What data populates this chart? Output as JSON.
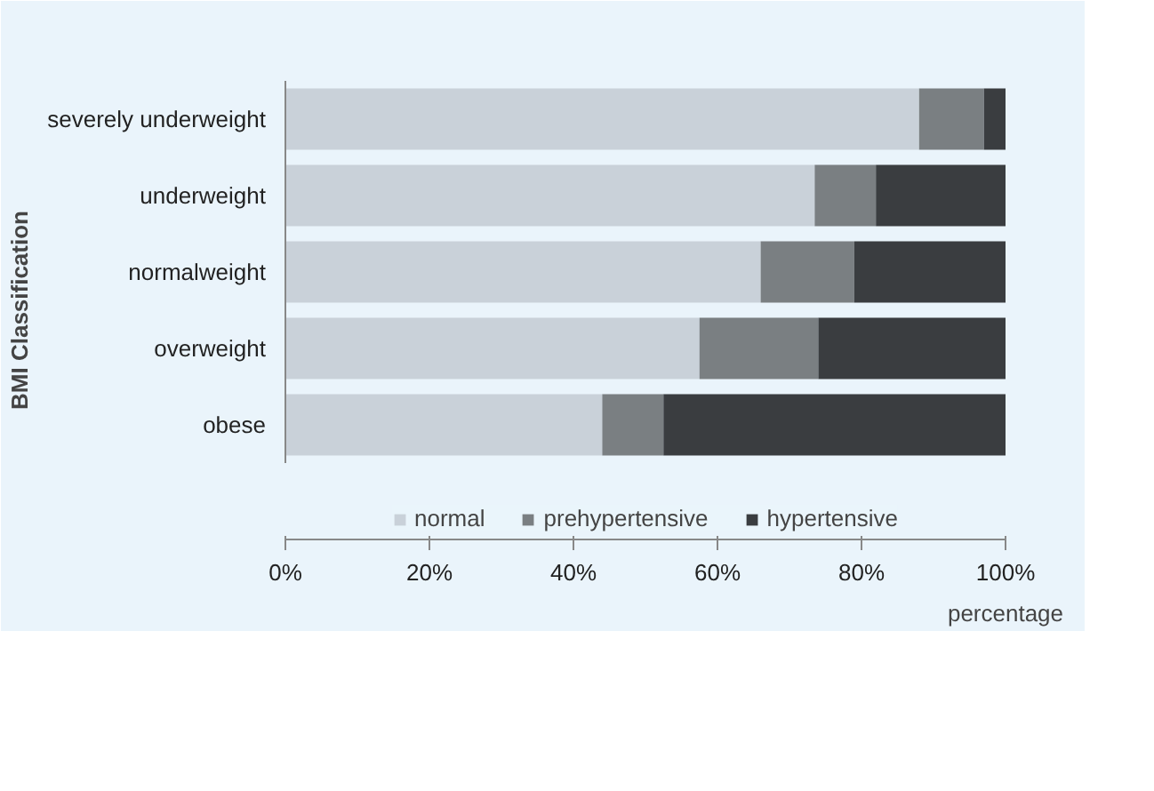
{
  "chart_data": {
    "type": "bar",
    "orientation": "horizontal",
    "stacked": true,
    "ylabel": "BMI Classification",
    "xlabel": "percentage",
    "categories": [
      "severely underweight",
      "underweight",
      "normalweight",
      "overweight",
      "obese"
    ],
    "series": [
      {
        "name": "normal",
        "color": "#c9d1d9",
        "values": [
          88,
          73.5,
          66,
          57.5,
          44
        ]
      },
      {
        "name": "prehypertensive",
        "color": "#7a7f82",
        "values": [
          9,
          8.5,
          13,
          16.5,
          8.5
        ]
      },
      {
        "name": "hypertensive",
        "color": "#3a3d40",
        "values": [
          3,
          18,
          21,
          26,
          47.5
        ]
      }
    ],
    "xlim": [
      0,
      100
    ],
    "xticks": [
      {
        "value": 0,
        "label": "0%"
      },
      {
        "value": 20,
        "label": "20%"
      },
      {
        "value": 40,
        "label": "40%"
      },
      {
        "value": 60,
        "label": "60%"
      },
      {
        "value": 80,
        "label": "80%"
      },
      {
        "value": 100,
        "label": "100%"
      }
    ],
    "grid": false,
    "legend": "bottom"
  }
}
